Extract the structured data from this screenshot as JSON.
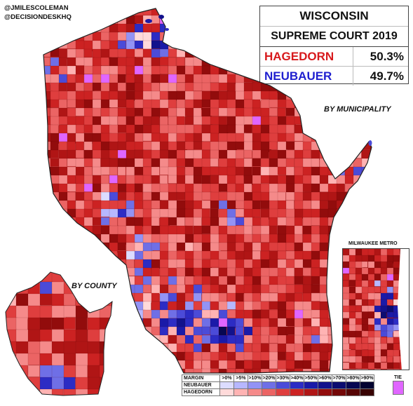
{
  "credits": [
    "@JMILESCOLEMAN",
    "@DECISIONDESKHQ"
  ],
  "title": {
    "line1": "WISCONSIN",
    "line2": "SUPREME COURT 2019"
  },
  "candidates": [
    {
      "name": "HAGEDORN",
      "pct": "50.3%",
      "color": "#d7191c"
    },
    {
      "name": "NEUBAUER",
      "pct": "49.7%",
      "color": "#1f1fcf"
    }
  ],
  "labels": {
    "by_municipality": "BY MUNICIPALITY",
    "by_county": "BY COUNTY",
    "milwaukee_metro": "MILWAUKEE METRO"
  },
  "legend": {
    "header_label": "MARGIN",
    "row_labels": [
      "NEUBAUER",
      "HAGEDORN"
    ],
    "bins": [
      ">0%",
      ">5%",
      ">10%",
      ">20%",
      ">30%",
      ">40%",
      ">50%",
      ">60%",
      ">70%",
      ">80%",
      ">90%"
    ],
    "tie_label": "TIE",
    "tie_color": "#e066ff",
    "neubauer_colors": [
      "#dcdcff",
      "#b7b7ff",
      "#9393f5",
      "#6f6fe6",
      "#4b4bd8",
      "#2c2cc4",
      "#1a1aa8",
      "#12128c",
      "#0c0c70",
      "#070752",
      "#030330"
    ],
    "hagedorn_colors": [
      "#ffdada",
      "#ffb3b3",
      "#f58a8a",
      "#eb6464",
      "#df3e3e",
      "#cc2222",
      "#b01515",
      "#920c0c",
      "#740707",
      "#560404",
      "#380202"
    ]
  }
}
